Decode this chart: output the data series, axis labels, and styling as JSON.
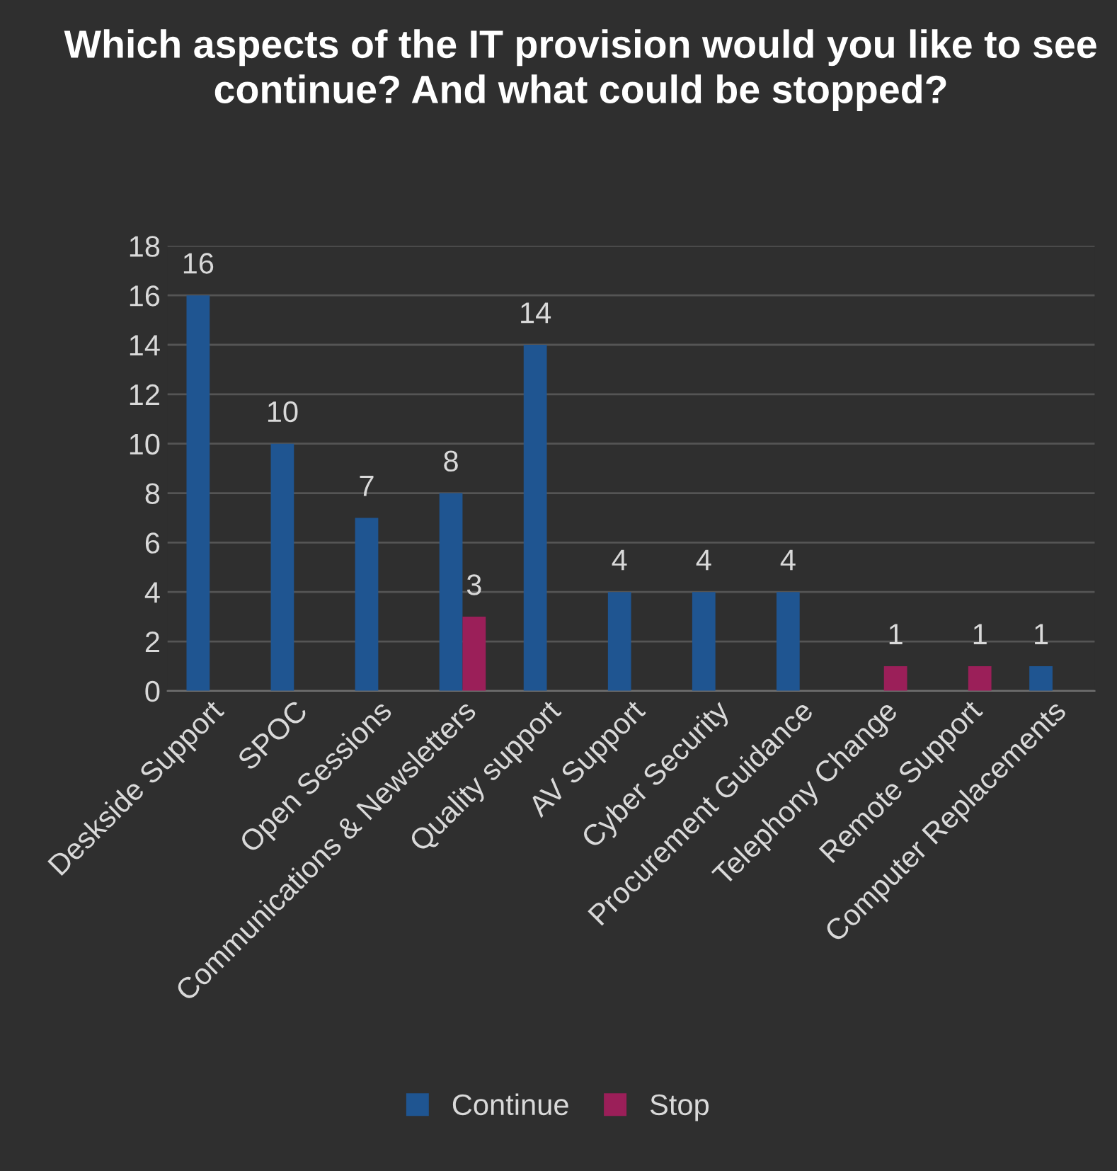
{
  "chart_data": {
    "type": "bar",
    "title": "Which aspects of the IT provision would you like to see continue? And what could be stopped?",
    "categories": [
      "Deskside Support",
      "SPOC",
      "Open Sessions",
      "Communications & Newsletters",
      "Quality support",
      "AV Support",
      "Cyber Security",
      "Procurement Guidance",
      "Telephony Change",
      "Remote Support",
      "Computer Replacements"
    ],
    "series": [
      {
        "name": "Continue",
        "color": "#1f5591",
        "values": [
          16,
          10,
          7,
          8,
          14,
          4,
          4,
          4,
          null,
          null,
          1
        ]
      },
      {
        "name": "Stop",
        "color": "#9b1f59",
        "values": [
          null,
          null,
          null,
          3,
          null,
          null,
          null,
          null,
          1,
          1,
          null
        ]
      }
    ],
    "ylim": [
      0,
      18
    ],
    "yticks": [
      0,
      2,
      4,
      6,
      8,
      10,
      12,
      14,
      16,
      18
    ],
    "grid": "y",
    "legend": "bottom",
    "data_labels": true
  }
}
